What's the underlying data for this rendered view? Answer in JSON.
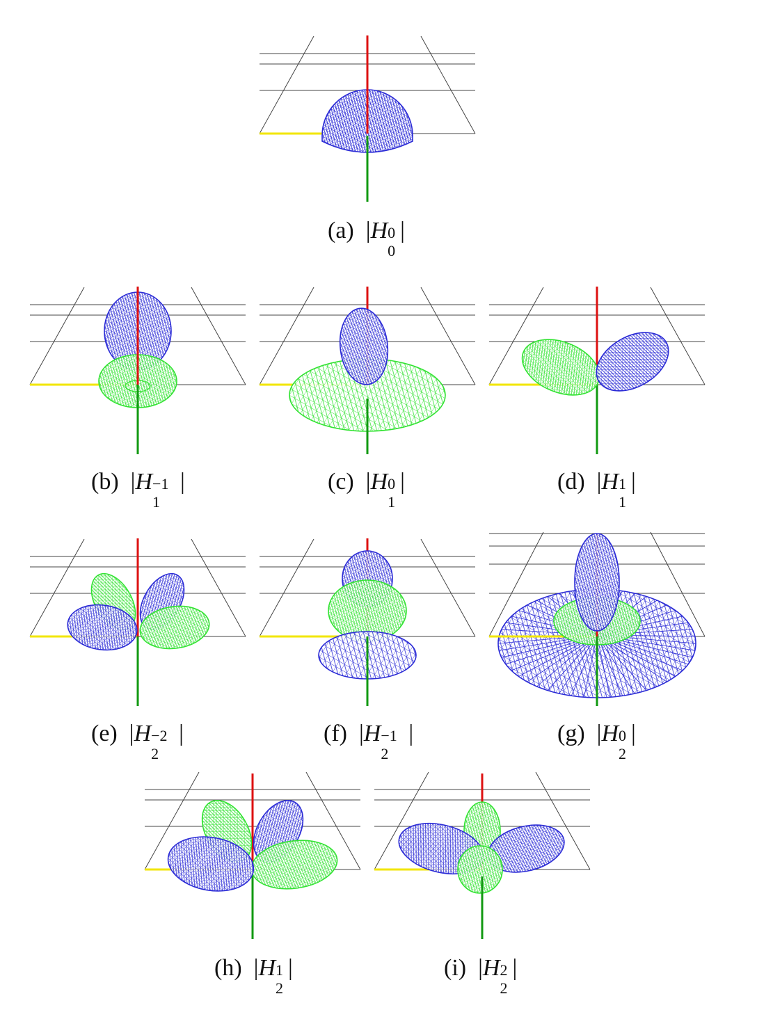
{
  "figure": {
    "panels": [
      {
        "id": "a",
        "label": "(a)",
        "func": "H",
        "sup": "0",
        "sub": "0",
        "lobes": [
          {
            "color": "blue",
            "kind": "dome"
          }
        ]
      },
      {
        "id": "b",
        "label": "(b)",
        "func": "H",
        "sup": "−1",
        "sub": "1",
        "lobes": [
          {
            "color": "blue",
            "kind": "ball"
          },
          {
            "color": "green",
            "kind": "torus"
          }
        ]
      },
      {
        "id": "c",
        "label": "(c)",
        "func": "H",
        "sup": "0",
        "sub": "1",
        "lobes": [
          {
            "color": "green",
            "kind": "disc"
          },
          {
            "color": "blue",
            "kind": "egg"
          }
        ]
      },
      {
        "id": "d",
        "label": "(d)",
        "func": "H",
        "sup": "1",
        "sub": "1",
        "lobes": [
          {
            "color": "green",
            "kind": "lobe-left"
          },
          {
            "color": "blue",
            "kind": "lobe-right"
          }
        ]
      },
      {
        "id": "e",
        "label": "(e)",
        "func": "H",
        "sup": "−2",
        "sub": "2",
        "lobes": [
          {
            "color": "green",
            "kind": "four-leaf"
          },
          {
            "color": "blue",
            "kind": "four-leaf"
          }
        ]
      },
      {
        "id": "f",
        "label": "(f)",
        "func": "H",
        "sup": "−1",
        "sub": "2",
        "lobes": [
          {
            "color": "blue",
            "kind": "cap-top"
          },
          {
            "color": "green",
            "kind": "band"
          },
          {
            "color": "blue",
            "kind": "bowl"
          }
        ]
      },
      {
        "id": "g",
        "label": "(g)",
        "func": "H",
        "sup": "0",
        "sub": "2",
        "lobes": [
          {
            "color": "blue",
            "kind": "big-disc"
          },
          {
            "color": "green",
            "kind": "torus"
          },
          {
            "color": "blue",
            "kind": "tall-egg"
          }
        ]
      },
      {
        "id": "h",
        "label": "(h)",
        "func": "H",
        "sup": "1",
        "sub": "2",
        "lobes": [
          {
            "color": "blue",
            "kind": "four-leaf"
          },
          {
            "color": "green",
            "kind": "four-leaf"
          }
        ]
      },
      {
        "id": "i",
        "label": "(i)",
        "func": "H",
        "sup": "2",
        "sub": "2",
        "lobes": [
          {
            "color": "blue",
            "kind": "side-lobes"
          },
          {
            "color": "green",
            "kind": "vertical-lobes"
          }
        ]
      }
    ]
  },
  "colors": {
    "blue": "#2b2bd6",
    "green": "#33e333",
    "axis_red": "#dd1111",
    "axis_green": "#119911",
    "axis_yellow": "#f2e600",
    "grid": "#444444"
  }
}
